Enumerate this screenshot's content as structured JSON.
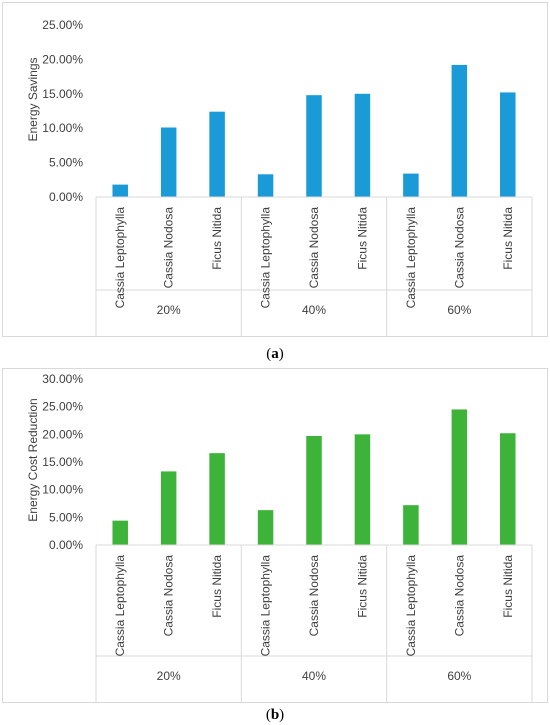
{
  "chart_data": [
    {
      "type": "bar",
      "panel_label": "a",
      "title": "",
      "xlabel": "",
      "ylabel": "Energy Savings",
      "ylim": [
        0,
        0.25
      ],
      "ytick_step": 0.05,
      "ytick_labels": [
        "0.00%",
        "5.00%",
        "10.00%",
        "15.00%",
        "20.00%",
        "25.00%"
      ],
      "grid": false,
      "legend": "none",
      "bar_color": "#1a9ad6",
      "groups": [
        "20%",
        "40%",
        "60%"
      ],
      "categories": [
        "Cassia Leptophylla",
        "Cassia Nodosa",
        "Ficus Nitida"
      ],
      "values": [
        [
          0.018,
          0.101,
          0.124
        ],
        [
          0.033,
          0.148,
          0.15
        ],
        [
          0.034,
          0.192,
          0.152
        ]
      ]
    },
    {
      "type": "bar",
      "panel_label": "b",
      "title": "",
      "xlabel": "",
      "ylabel": "Energy Cost Reduction",
      "ylim": [
        0,
        0.3
      ],
      "ytick_step": 0.05,
      "ytick_labels": [
        "0.00%",
        "5.00%",
        "10.00%",
        "15.00%",
        "20.00%",
        "25.00%",
        "30.00%"
      ],
      "grid": false,
      "legend": "none",
      "bar_color": "#3db33a",
      "groups": [
        "20%",
        "40%",
        "60%"
      ],
      "categories": [
        "Cassia Leptophylla",
        "Cassia Nodosa",
        "Ficus Nitida"
      ],
      "values": [
        [
          0.044,
          0.133,
          0.166
        ],
        [
          0.063,
          0.197,
          0.2
        ],
        [
          0.072,
          0.245,
          0.202
        ]
      ]
    }
  ]
}
